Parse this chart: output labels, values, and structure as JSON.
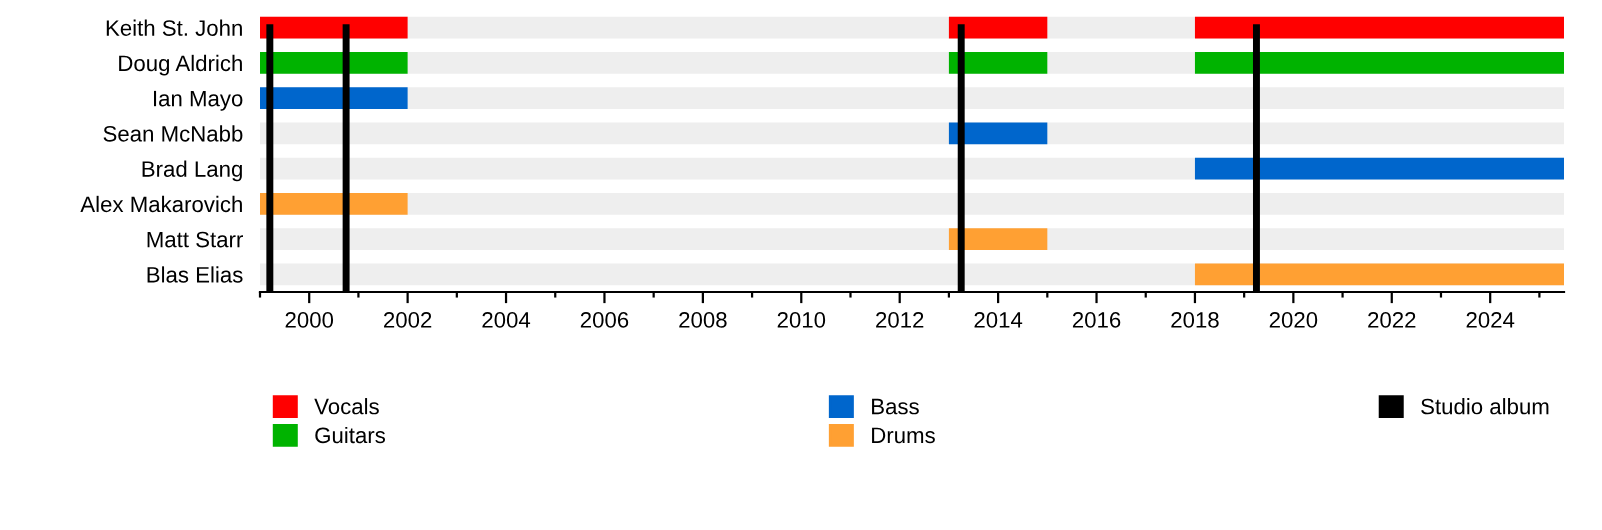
{
  "chart_data": {
    "type": "bar",
    "orientation": "horizontal",
    "categories": [
      "Keith St. John",
      "Doug Aldrich",
      "Ian Mayo",
      "Sean McNabb",
      "Brad Lang",
      "Alex Makarovich",
      "Matt Starr",
      "Blas Elias"
    ],
    "series": [
      {
        "name": "Vocals",
        "color": "#ff0000",
        "values": [
          3,
          null,
          null,
          null,
          null,
          null,
          null,
          null
        ],
        "base": [
          1999,
          null,
          null,
          null,
          null,
          null,
          null,
          null
        ]
      },
      {
        "color": "#ff0000",
        "values": [
          2,
          null,
          null,
          null,
          null,
          null,
          null,
          null
        ],
        "base": [
          2013,
          null,
          null,
          null,
          null,
          null,
          null,
          null
        ]
      },
      {
        "color": "#ff0000",
        "values": [
          7.5,
          null,
          null,
          null,
          null,
          null,
          null,
          null
        ],
        "base": [
          2018,
          null,
          null,
          null,
          null,
          null,
          null,
          null
        ]
      },
      {
        "name": "Guitars",
        "color": "#00b300",
        "values": [
          null,
          3,
          null,
          null,
          null,
          null,
          null,
          null
        ],
        "base": [
          null,
          1999,
          null,
          null,
          null,
          null,
          null,
          null
        ]
      },
      {
        "color": "#00b300",
        "values": [
          null,
          2,
          null,
          null,
          null,
          null,
          null,
          null
        ],
        "base": [
          null,
          2013,
          null,
          null,
          null,
          null,
          null,
          null
        ]
      },
      {
        "color": "#00b300",
        "values": [
          null,
          7.5,
          null,
          null,
          null,
          null,
          null,
          null
        ],
        "base": [
          null,
          2018,
          null,
          null,
          null,
          null,
          null,
          null
        ]
      },
      {
        "name": "Bass",
        "color": "#0066cc",
        "values": [
          null,
          null,
          3,
          2,
          7.5,
          null,
          null,
          null
        ],
        "base": [
          null,
          null,
          1999,
          2013,
          2018,
          null,
          null,
          null
        ]
      },
      {
        "name": "Drums",
        "color": "#ffa033",
        "values": [
          null,
          null,
          null,
          null,
          null,
          3,
          2,
          7.5
        ],
        "base": [
          null,
          null,
          null,
          null,
          null,
          1999,
          2013,
          2018
        ]
      }
    ],
    "ref_lines": [
      {
        "axis": "x",
        "value": 1999.2,
        "label": "Studio album",
        "color": "#000000"
      },
      {
        "axis": "x",
        "value": 2000.75,
        "color": "#000000"
      },
      {
        "axis": "x",
        "value": 2013.25,
        "color": "#000000"
      },
      {
        "axis": "x",
        "value": 2019.25,
        "color": "#000000"
      }
    ],
    "xlim": [
      1999,
      2025.5
    ],
    "xticks": [
      {
        "value": 1999,
        "label": null
      },
      2000,
      {
        "value": 2001,
        "label": null
      },
      2002,
      {
        "value": 2003,
        "label": null
      },
      2004,
      {
        "value": 2005,
        "label": null
      },
      2006,
      {
        "value": 2007,
        "label": null
      },
      2008,
      {
        "value": 2009,
        "label": null
      },
      2010,
      {
        "value": 2011,
        "label": null
      },
      2012,
      {
        "value": 2013,
        "label": null
      },
      2014,
      {
        "value": 2015,
        "label": null
      },
      2016,
      {
        "value": 2017,
        "label": null
      },
      2018,
      {
        "value": 2019,
        "label": null
      },
      2020,
      {
        "value": 2021,
        "label": null
      },
      2022,
      {
        "value": 2023,
        "label": null
      },
      2024,
      {
        "value": 2025,
        "label": null
      }
    ],
    "grid": false,
    "legend": "bottom"
  }
}
